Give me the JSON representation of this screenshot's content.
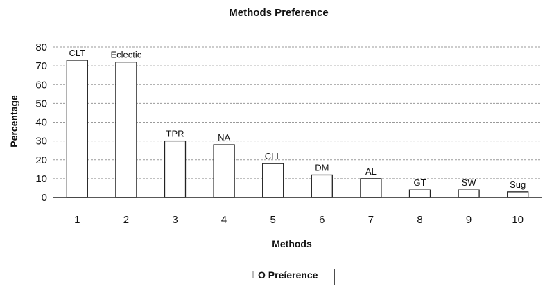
{
  "chart_data": {
    "type": "bar",
    "title": "Methods Preference",
    "xlabel": "Methods",
    "ylabel": "Percentage",
    "categories": [
      "1",
      "2",
      "3",
      "4",
      "5",
      "6",
      "7",
      "8",
      "9",
      "10"
    ],
    "bar_labels": [
      "CLT",
      "Eclectic",
      "TPR",
      "NA",
      "CLL",
      "DM",
      "AL",
      "GT",
      "SW",
      "Sug"
    ],
    "series": [
      {
        "name": "O Preíerence",
        "values": [
          73,
          72,
          30,
          28,
          18,
          12,
          10,
          4,
          4,
          3
        ]
      }
    ],
    "ylim": [
      0,
      80
    ],
    "yticks": [
      0,
      10,
      20,
      30,
      40,
      50,
      60,
      70,
      80
    ],
    "grid": true,
    "legend_position": "bottom",
    "colors": {
      "bar_fill": "#ffffff",
      "bar_stroke": "#222222",
      "grid": "#9a9a9a",
      "axis": "#222222"
    }
  }
}
